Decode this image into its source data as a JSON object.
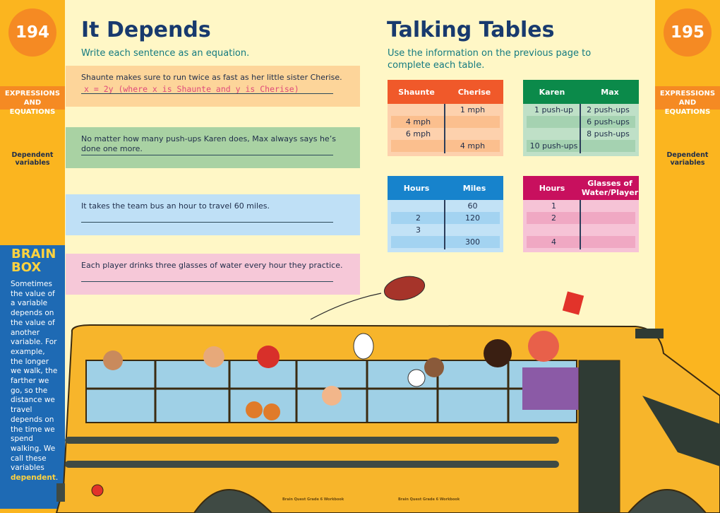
{
  "left_page": {
    "page_number": "194",
    "band": [
      "EXPRESSIONS",
      "AND EQUATIONS"
    ],
    "topic": "Dependent variables",
    "title": "It Depends",
    "instruction": "Write each sentence as an equation.",
    "questions": [
      {
        "text": "Shaunte makes sure to run twice as fast as her little sister Cherise.",
        "answer": "x = 2y (where x is Shaunte and y is Cherise)",
        "color": "#fdd59a"
      },
      {
        "text": "No matter how many push-ups Karen does, Max always says he’s done one more.",
        "answer": "",
        "color": "#a9d2a3"
      },
      {
        "text": "It takes the team bus an hour to travel 60 miles.",
        "answer": "",
        "color": "#bfe0f6"
      },
      {
        "text": "Each player drinks three glasses of water every hour they practice.",
        "answer": "",
        "color": "#f6c8d8"
      }
    ],
    "brain_box": {
      "title": "BRAIN BOX",
      "text": "Sometimes the value of a variable depends on the value of another variable. For example, the longer we walk, the farther we go, so the distance we travel depends on the time we spend walking. We call these variables ",
      "highlight": "dependent",
      "end": "."
    },
    "footer": "Brain Quest Grade 6 Workbook"
  },
  "right_page": {
    "page_number": "195",
    "band": [
      "EXPRESSIONS",
      "AND EQUATIONS"
    ],
    "topic": "Dependent variables",
    "title": "Talking Tables",
    "instruction": "Use the information on the previous page to complete each table.",
    "footer": "Brain Quest Grade 6 Workbook",
    "tables": [
      {
        "headers": [
          "Shaunte",
          "Cherise"
        ],
        "rows": [
          [
            "",
            "1 mph"
          ],
          [
            "4 mph",
            ""
          ],
          [
            "6 mph",
            ""
          ],
          [
            "",
            "4 mph"
          ]
        ],
        "head_color": "#f0592a",
        "body_color": "#fdd1ad",
        "stripe_color": "#fbbf8e"
      },
      {
        "headers": [
          "Karen",
          "Max"
        ],
        "rows": [
          [
            "1 push-up",
            "2 push-ups"
          ],
          [
            "",
            "6 push-ups"
          ],
          [
            "",
            "8 push-ups"
          ],
          [
            "10 push-ups",
            ""
          ]
        ],
        "head_color": "#0b8a4a",
        "body_color": "#bfe0c7",
        "stripe_color": "#a5d2b1"
      },
      {
        "headers": [
          "Hours",
          "Miles"
        ],
        "rows": [
          [
            "",
            "60"
          ],
          [
            "2",
            "120"
          ],
          [
            "3",
            ""
          ],
          [
            "",
            "300"
          ]
        ],
        "head_color": "#1783cc",
        "body_color": "#c2e2f6",
        "stripe_color": "#a3d3f1"
      },
      {
        "headers": [
          "Hours",
          "Glasses of Water/Player"
        ],
        "rows": [
          [
            "1",
            ""
          ],
          [
            "2",
            ""
          ],
          [
            "",
            ""
          ],
          [
            "4",
            ""
          ]
        ],
        "head_color": "#c8105e",
        "body_color": "#f6c3d6",
        "stripe_color": "#f0a8c3"
      }
    ]
  }
}
